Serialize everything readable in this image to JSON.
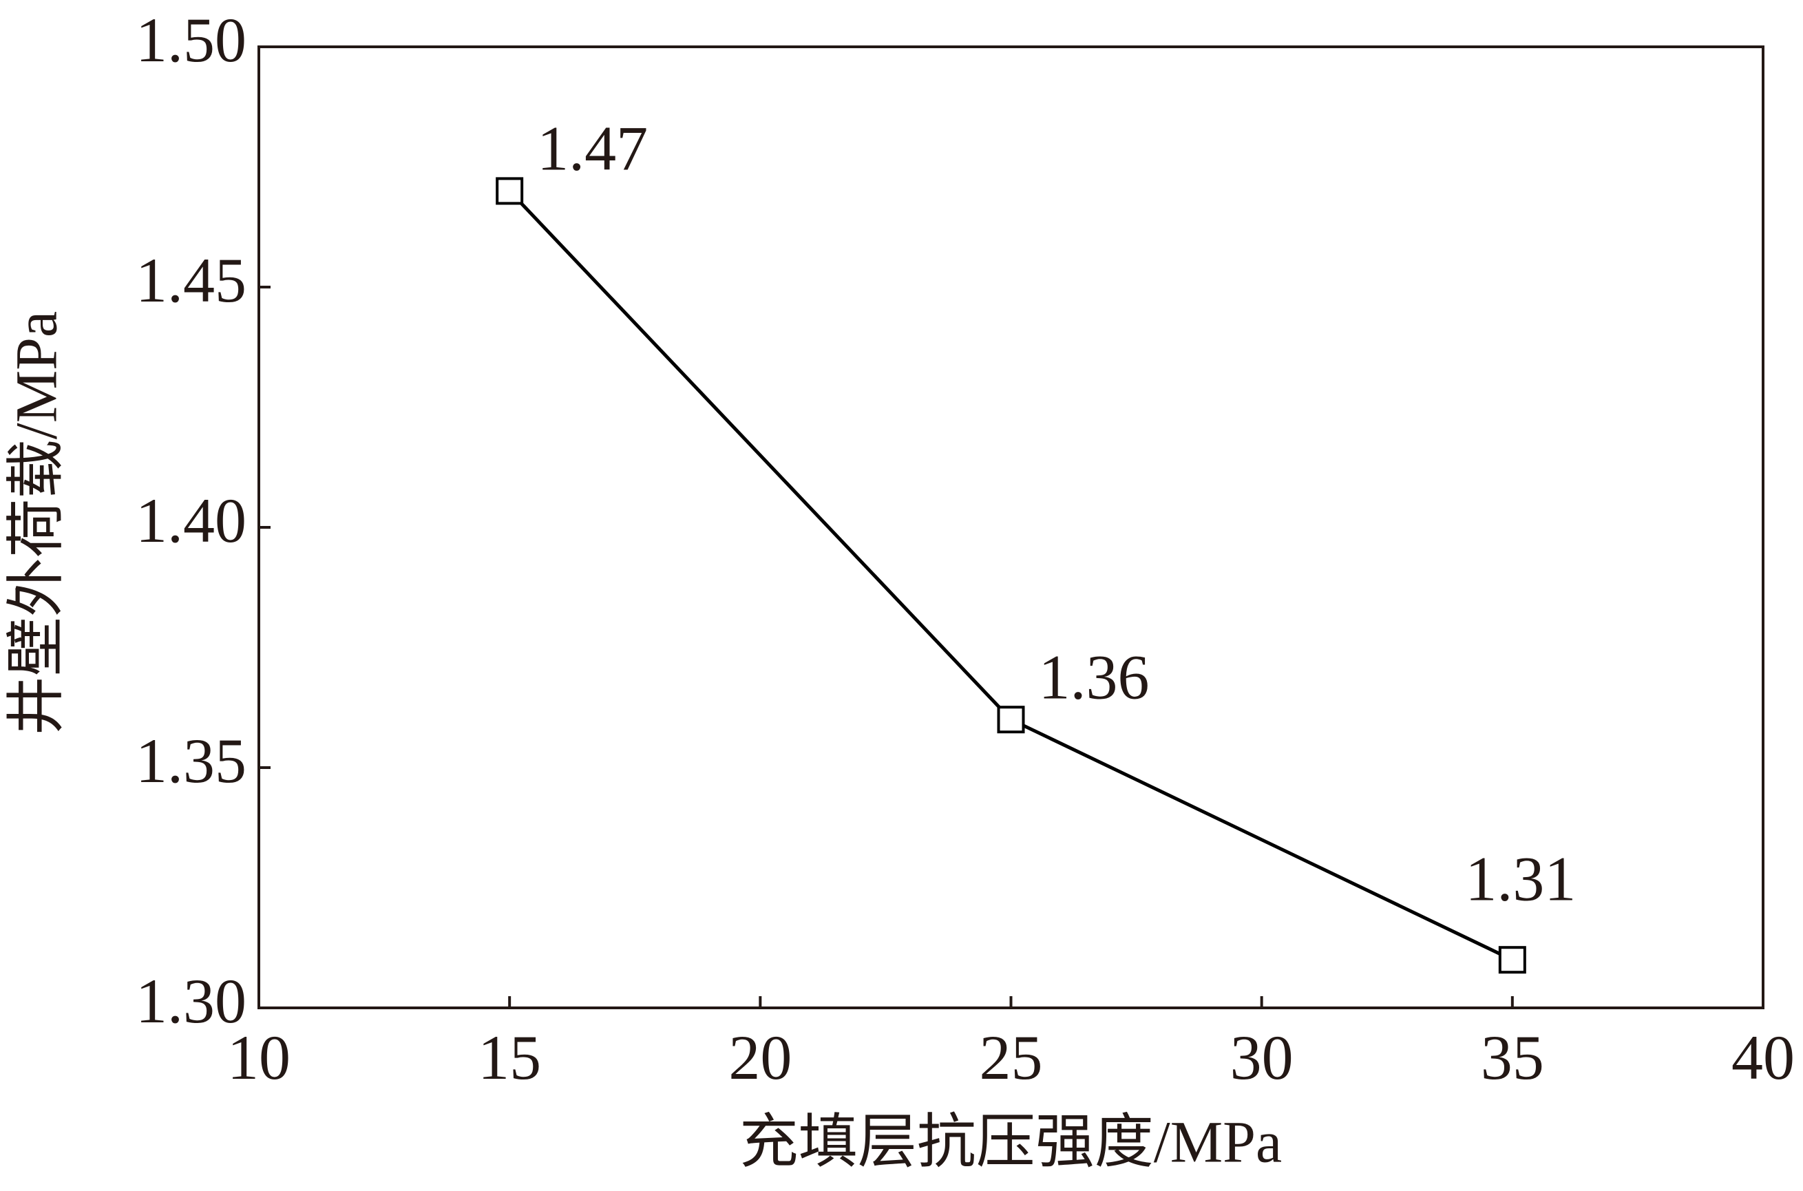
{
  "chart_data": {
    "type": "line",
    "x_label": "充填层抗压强度/MPa",
    "y_label": "井壁外荷载/MPa",
    "x": [
      15,
      25,
      35
    ],
    "series": [
      {
        "color": "#000000",
        "values": [
          1.47,
          1.36,
          1.31
        ]
      }
    ],
    "xlim": [
      10,
      40
    ],
    "xticks": [
      10,
      15,
      20,
      25,
      30,
      35,
      40
    ],
    "ylim": [
      1.3,
      1.5
    ],
    "yticks": [
      {
        "value": 1.3,
        "label": "1.30"
      },
      1.35,
      {
        "value": 1.4,
        "label": "1.40"
      },
      1.45,
      {
        "value": 1.5,
        "label": "1.50"
      }
    ],
    "grid": false
  }
}
